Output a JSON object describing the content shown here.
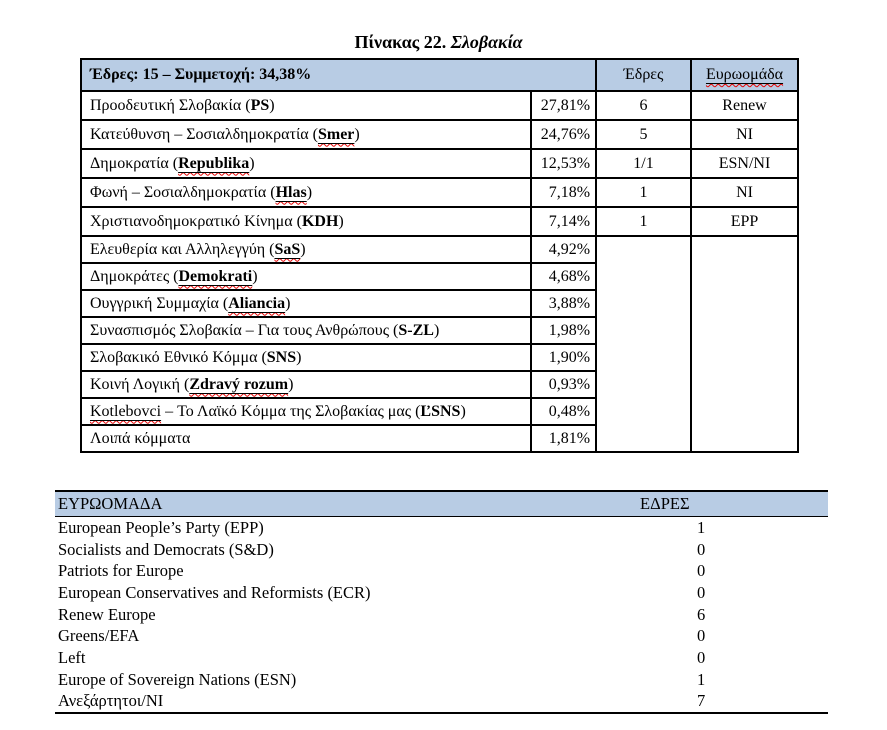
{
  "title": {
    "prefix": "Πίνακας 22.",
    "country": "Σλοβακία"
  },
  "colors": {
    "header_bg": "#b8cce4",
    "border": "#000000",
    "squiggle_red": "#e60000"
  },
  "table1": {
    "header": {
      "summary": "Έδρες: 15 – Συμμετοχή: 34,38%",
      "seats": "Έδρες",
      "group": "Ευρωομάδα"
    },
    "rows": [
      {
        "name": [
          {
            "t": "Προοδευτική Σλοβακία (",
            "s": "plain"
          },
          {
            "t": "PS",
            "s": "bold"
          },
          {
            "t": ")",
            "s": "plain"
          }
        ],
        "percent": "27,81%",
        "seats": "6",
        "group": "Renew"
      },
      {
        "name": [
          {
            "t": "Κατεύθυνση – Σοσιαλδημοκρατία (",
            "s": "plain"
          },
          {
            "t": "Smer",
            "s": "bold-u"
          },
          {
            "t": ")",
            "s": "plain"
          }
        ],
        "percent": "24,76%",
        "seats": "5",
        "group": "NI"
      },
      {
        "name": [
          {
            "t": "Δημοκρατία (",
            "s": "plain"
          },
          {
            "t": "Republika",
            "s": "bold-u"
          },
          {
            "t": ")",
            "s": "plain"
          }
        ],
        "percent": "12,53%",
        "seats": "1/1",
        "group": "ESN/NI"
      },
      {
        "name": [
          {
            "t": "Φωνή – Σοσιαλδημοκρατία (",
            "s": "plain"
          },
          {
            "t": "Hlas",
            "s": "bold-u"
          },
          {
            "t": ")",
            "s": "plain"
          }
        ],
        "percent": "7,18%",
        "seats": "1",
        "group": "NI"
      },
      {
        "name": [
          {
            "t": "Χριστιανοδημοκρατικό Κίνημα (",
            "s": "plain"
          },
          {
            "t": "KDH",
            "s": "bold"
          },
          {
            "t": ")",
            "s": "plain"
          }
        ],
        "percent": "7,14%",
        "seats": "1",
        "group": "EPP"
      },
      {
        "name": [
          {
            "t": "Ελευθερία και Αλληλεγγύη (",
            "s": "plain"
          },
          {
            "t": "SaS",
            "s": "bold-u"
          },
          {
            "t": ")",
            "s": "plain"
          }
        ],
        "percent": "4,92%",
        "seats": null,
        "group": null
      },
      {
        "name": [
          {
            "t": "Δημοκράτες (",
            "s": "plain"
          },
          {
            "t": "Demokrati",
            "s": "bold-u"
          },
          {
            "t": ")",
            "s": "plain"
          }
        ],
        "percent": "4,68%",
        "seats": null,
        "group": null
      },
      {
        "name": [
          {
            "t": "Ουγγρική Συμμαχία (",
            "s": "plain"
          },
          {
            "t": "Aliancia",
            "s": "bold-u"
          },
          {
            "t": ")",
            "s": "plain"
          }
        ],
        "percent": "3,88%",
        "seats": null,
        "group": null
      },
      {
        "name": [
          {
            "t": "Συνασπισμός Σλοβακία – Για τους Ανθρώπους (",
            "s": "plain"
          },
          {
            "t": "S-ZL",
            "s": "bold"
          },
          {
            "t": ")",
            "s": "plain"
          }
        ],
        "percent": "1,98%",
        "seats": null,
        "group": null
      },
      {
        "name": [
          {
            "t": "Σλοβακικό Εθνικό Κόμμα (",
            "s": "plain"
          },
          {
            "t": "SNS",
            "s": "bold"
          },
          {
            "t": ")",
            "s": "plain"
          }
        ],
        "percent": "1,90%",
        "seats": null,
        "group": null
      },
      {
        "name": [
          {
            "t": "Κοινή Λογική (",
            "s": "plain"
          },
          {
            "t": "Zdravý rozum",
            "s": "bold-u"
          },
          {
            "t": ")",
            "s": "plain"
          }
        ],
        "percent": "0,93%",
        "seats": null,
        "group": null
      },
      {
        "name": [
          {
            "t": "Kotlebovci",
            "s": "u"
          },
          {
            "t": " – Το Λαϊκό Κόμμα της Σλοβακίας μας (",
            "s": "plain"
          },
          {
            "t": "ĽSNS",
            "s": "bold"
          },
          {
            "t": ")",
            "s": "plain"
          }
        ],
        "percent": "0,48%",
        "seats": null,
        "group": null
      },
      {
        "name": [
          {
            "t": "Λοιπά κόμματα",
            "s": "plain"
          }
        ],
        "percent": "1,81%",
        "seats": null,
        "group": null
      }
    ]
  },
  "table2": {
    "header": {
      "group": "ΕΥΡΩΟΜΑΔΑ",
      "seats": "ΕΔΡΕΣ"
    },
    "rows": [
      {
        "group": "European People’s Party (EPP)",
        "seats": "1"
      },
      {
        "group": "Socialists and Democrats (S&D)",
        "seats": "0"
      },
      {
        "group": "Patriots for Europe",
        "seats": "0"
      },
      {
        "group": "European Conservatives and Reformists (ECR)",
        "seats": "0"
      },
      {
        "group": "Renew Europe",
        "seats": "6"
      },
      {
        "group": "Greens/EFA",
        "seats": "0"
      },
      {
        "group": "Left",
        "seats": "0"
      },
      {
        "group": "Europe of Sovereign Nations (ESN)",
        "seats": "1"
      },
      {
        "group": "Ανεξάρτητοι/NI",
        "seats": "7"
      }
    ]
  }
}
